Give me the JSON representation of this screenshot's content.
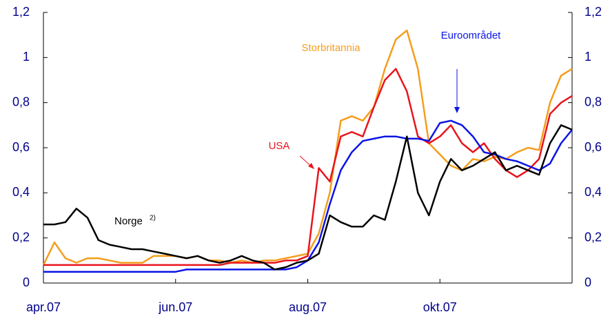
{
  "chart_data": {
    "type": "line",
    "categories": [
      "apr.07",
      null,
      null,
      null,
      null,
      null,
      null,
      null,
      null,
      null,
      null,
      null,
      "jun.07",
      null,
      null,
      null,
      null,
      null,
      null,
      null,
      null,
      null,
      null,
      null,
      "aug.07",
      null,
      null,
      null,
      null,
      null,
      null,
      null,
      null,
      null,
      null,
      null,
      "okt.07",
      null,
      null,
      null,
      null,
      null,
      null,
      null,
      null,
      null,
      null,
      null,
      null
    ],
    "series": [
      {
        "name": "Storbritannia",
        "color": "#f59d1c",
        "values": [
          0.08,
          0.18,
          0.11,
          0.09,
          0.11,
          0.11,
          0.1,
          0.09,
          0.09,
          0.09,
          0.12,
          0.12,
          0.12,
          0.11,
          0.12,
          0.1,
          0.1,
          0.09,
          0.1,
          0.09,
          0.1,
          0.1,
          0.11,
          0.12,
          0.13,
          0.22,
          0.4,
          0.72,
          0.74,
          0.72,
          0.78,
          0.95,
          1.08,
          1.12,
          0.95,
          0.62,
          0.57,
          0.52,
          0.5,
          0.55,
          0.54,
          0.56,
          0.55,
          0.58,
          0.6,
          0.59,
          0.8,
          0.92,
          0.95
        ]
      },
      {
        "name": "USA",
        "color": "#e8141c",
        "values": [
          0.08,
          0.08,
          0.08,
          0.08,
          0.08,
          0.08,
          0.08,
          0.08,
          0.08,
          0.08,
          0.08,
          0.08,
          0.08,
          0.08,
          0.08,
          0.08,
          0.08,
          0.09,
          0.09,
          0.09,
          0.09,
          0.09,
          0.1,
          0.1,
          0.12,
          0.51,
          0.45,
          0.65,
          0.67,
          0.65,
          0.78,
          0.9,
          0.95,
          0.85,
          0.65,
          0.62,
          0.65,
          0.7,
          0.62,
          0.58,
          0.62,
          0.55,
          0.5,
          0.47,
          0.5,
          0.55,
          0.75,
          0.8,
          0.83
        ]
      },
      {
        "name": "Euroområdet",
        "color": "#0a14e6",
        "values": [
          0.05,
          0.05,
          0.05,
          0.05,
          0.05,
          0.05,
          0.05,
          0.05,
          0.05,
          0.05,
          0.05,
          0.05,
          0.05,
          0.06,
          0.06,
          0.06,
          0.06,
          0.06,
          0.06,
          0.06,
          0.06,
          0.06,
          0.06,
          0.07,
          0.1,
          0.18,
          0.35,
          0.5,
          0.58,
          0.63,
          0.64,
          0.65,
          0.65,
          0.64,
          0.64,
          0.63,
          0.71,
          0.72,
          0.7,
          0.65,
          0.58,
          0.57,
          0.55,
          0.54,
          0.52,
          0.5,
          0.53,
          0.62,
          0.68
        ]
      },
      {
        "name": "Norge",
        "note": "2)",
        "color": "#000000",
        "values": [
          0.26,
          0.26,
          0.27,
          0.33,
          0.29,
          0.19,
          0.17,
          0.16,
          0.15,
          0.15,
          0.14,
          0.13,
          0.12,
          0.11,
          0.12,
          0.1,
          0.09,
          0.1,
          0.12,
          0.1,
          0.09,
          0.06,
          0.07,
          0.09,
          0.1,
          0.13,
          0.3,
          0.27,
          0.25,
          0.25,
          0.3,
          0.28,
          0.45,
          0.65,
          0.4,
          0.3,
          0.45,
          0.55,
          0.5,
          0.52,
          0.55,
          0.58,
          0.5,
          0.52,
          0.5,
          0.48,
          0.62,
          0.7,
          0.68
        ]
      }
    ],
    "ylim": [
      0,
      1.2
    ],
    "yticks": [
      0,
      {
        "value": 0.2,
        "label": "0,2"
      },
      {
        "value": 0.4,
        "label": "0,4"
      },
      {
        "value": 0.6,
        "label": "0,6"
      },
      {
        "value": 0.8,
        "label": "0,8"
      },
      1,
      {
        "value": 1.2,
        "label": "1,2"
      }
    ],
    "y2lim": [
      0,
      1.2
    ],
    "y2ticks": [
      0,
      {
        "value": 0.2,
        "label": "0,2"
      },
      {
        "value": 0.4,
        "label": "0,4"
      },
      {
        "value": 0.6,
        "label": "0,6"
      },
      {
        "value": 0.8,
        "label": "0,8"
      },
      1,
      {
        "value": 1.2,
        "label": "1,2"
      }
    ],
    "grid": false
  }
}
